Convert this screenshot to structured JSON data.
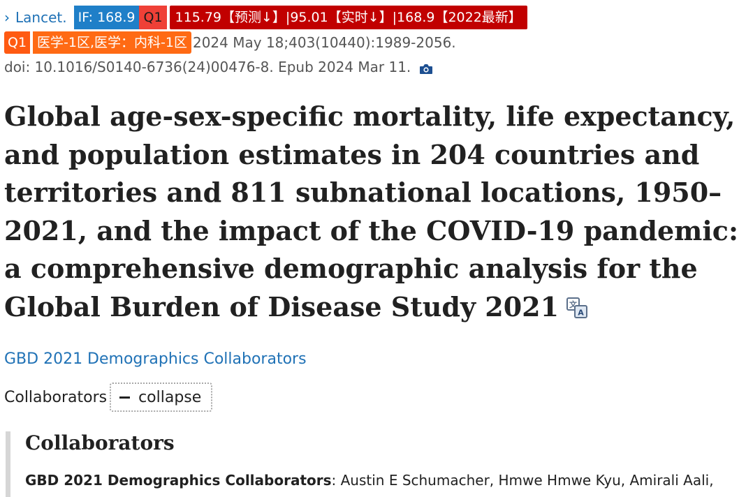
{
  "journal": {
    "chevron": "›",
    "name": "Lancet."
  },
  "badges": {
    "impact_factor": "IF: 168.9",
    "quartile": "Q1",
    "prediction": "115.79【预测↓】|95.01【实时↓】|168.9【2022最新】",
    "quartile2": "Q1",
    "cas_zone": "医学-1区,医学：内科-1区"
  },
  "citation": {
    "details": "2024 May 18;403(10440):1989-2056.",
    "doi": "doi: 10.1016/S0140-6736(24)00476-8. Epub 2024 Mar 11."
  },
  "article": {
    "title": "Global age-sex-specific mortality, life expectancy, and population estimates in 204 countries and territories and 811 subnational locations, 1950–2021, and the impact of the COVID-19 pandemic: a comprehensive demographic analysis for the Global Burden of Disease Study 2021"
  },
  "authors": {
    "group": "GBD 2021 Demographics Collaborators"
  },
  "collaborators": {
    "label": "Collaborators",
    "collapse_label": "collapse",
    "heading": "Collaborators",
    "group_name": "GBD 2021 Demographics Collaborators",
    "names": ": Austin E Schumacher, Hmwe Hmwe Kyu, Amirali Aali,"
  },
  "icons": {
    "camera": "camera-icon",
    "translate": "translate-icon"
  },
  "colors": {
    "link": "#2072b6",
    "if_badge": "#1f7fc8",
    "q1_red": "#ef4037",
    "prediction": "#c10000",
    "q1_orange": "#ff5a12"
  }
}
